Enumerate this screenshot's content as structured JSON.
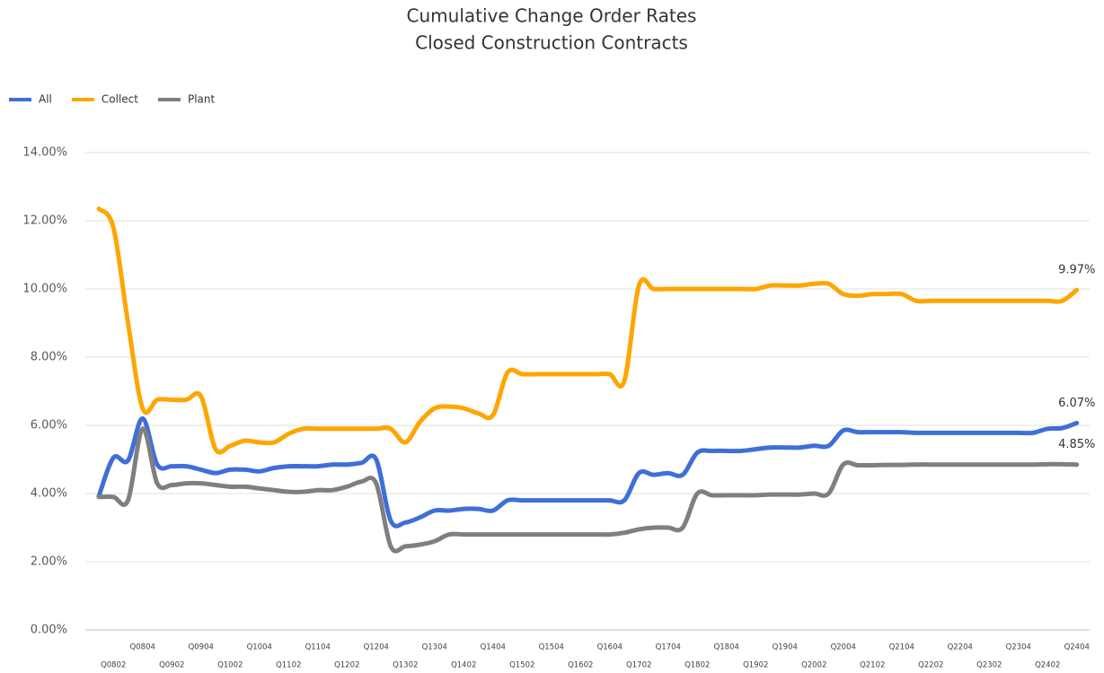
{
  "chart_data": {
    "type": "line",
    "title": "Cumulative Change Order Rates",
    "subtitle": "Closed Construction Contracts",
    "categories": [
      null,
      "Q0802",
      null,
      "Q0804",
      null,
      "Q0902",
      null,
      "Q0904",
      null,
      "Q1002",
      null,
      "Q1004",
      null,
      "Q1102",
      null,
      "Q1104",
      null,
      "Q1202",
      null,
      "Q1204",
      null,
      "Q1302",
      null,
      "Q1304",
      null,
      "Q1402",
      null,
      "Q1404",
      null,
      "Q1502",
      null,
      "Q1504",
      null,
      "Q1602",
      null,
      "Q1604",
      null,
      "Q1702",
      null,
      "Q1704",
      null,
      "Q1802",
      null,
      "Q1804",
      null,
      "Q1902",
      null,
      "Q1904",
      null,
      "Q2002",
      null,
      "Q2004",
      null,
      "Q2102",
      null,
      "Q2104",
      null,
      "Q2202",
      null,
      "Q2204",
      null,
      "Q2302",
      null,
      "Q2304",
      null,
      "Q2402",
      null,
      "Q2404"
    ],
    "series": [
      {
        "name": "All",
        "color": "#3e6fd8",
        "values": [
          3.92,
          5.05,
          4.97,
          6.2,
          4.85,
          4.8,
          4.8,
          4.7,
          4.6,
          4.7,
          4.7,
          4.65,
          4.75,
          4.8,
          4.8,
          4.8,
          4.85,
          4.85,
          4.9,
          5.0,
          3.2,
          3.15,
          3.3,
          3.5,
          3.5,
          3.55,
          3.55,
          3.5,
          3.8,
          3.8,
          3.8,
          3.8,
          3.8,
          3.8,
          3.8,
          3.8,
          3.8,
          4.6,
          4.55,
          4.6,
          4.55,
          5.2,
          5.25,
          5.25,
          5.25,
          5.3,
          5.35,
          5.35,
          5.35,
          5.4,
          5.4,
          5.85,
          5.8,
          5.8,
          5.8,
          5.8,
          5.78,
          5.78,
          5.78,
          5.78,
          5.78,
          5.78,
          5.78,
          5.78,
          5.78,
          5.9,
          5.92,
          6.07
        ],
        "value_labels": [
          null,
          null,
          null,
          null,
          null,
          null,
          null,
          null,
          null,
          null,
          null,
          null,
          null,
          null,
          null,
          null,
          null,
          null,
          null,
          null,
          null,
          null,
          null,
          null,
          null,
          null,
          null,
          null,
          null,
          null,
          null,
          null,
          null,
          null,
          null,
          null,
          null,
          null,
          null,
          null,
          null,
          null,
          null,
          null,
          null,
          null,
          null,
          null,
          null,
          null,
          null,
          null,
          null,
          null,
          null,
          null,
          null,
          null,
          null,
          null,
          null,
          null,
          null,
          null,
          null,
          null,
          null,
          "6.07%"
        ]
      },
      {
        "name": "Collect",
        "color": "#ffa500",
        "values": [
          12.35,
          11.8,
          9.0,
          6.5,
          6.75,
          6.75,
          6.75,
          6.85,
          5.3,
          5.4,
          5.55,
          5.5,
          5.5,
          5.75,
          5.9,
          5.9,
          5.9,
          5.9,
          5.9,
          5.9,
          5.9,
          5.5,
          6.1,
          6.5,
          6.55,
          6.5,
          6.35,
          6.3,
          7.55,
          7.5,
          7.5,
          7.5,
          7.5,
          7.5,
          7.5,
          7.5,
          7.3,
          10.1,
          10.0,
          10.0,
          10.0,
          10.0,
          10.0,
          10.0,
          10.0,
          10.0,
          10.1,
          10.1,
          10.1,
          10.15,
          10.15,
          9.85,
          9.8,
          9.85,
          9.85,
          9.85,
          9.65,
          9.65,
          9.65,
          9.65,
          9.65,
          9.65,
          9.65,
          9.65,
          9.65,
          9.65,
          9.65,
          9.97
        ],
        "value_labels": [
          null,
          null,
          null,
          null,
          null,
          null,
          null,
          null,
          null,
          null,
          null,
          null,
          null,
          null,
          null,
          null,
          null,
          null,
          null,
          null,
          null,
          null,
          null,
          null,
          null,
          null,
          null,
          null,
          null,
          null,
          null,
          null,
          null,
          null,
          null,
          null,
          null,
          null,
          null,
          null,
          null,
          null,
          null,
          null,
          null,
          null,
          null,
          null,
          null,
          null,
          null,
          null,
          null,
          null,
          null,
          null,
          null,
          null,
          null,
          null,
          null,
          null,
          null,
          null,
          null,
          null,
          null,
          "9.97%"
        ]
      },
      {
        "name": "Plant",
        "color": "#7f7f7f",
        "values": [
          3.9,
          3.9,
          3.8,
          5.9,
          4.3,
          4.25,
          4.3,
          4.3,
          4.25,
          4.2,
          4.2,
          4.15,
          4.1,
          4.05,
          4.05,
          4.1,
          4.1,
          4.2,
          4.35,
          4.3,
          2.45,
          2.45,
          2.5,
          2.6,
          2.8,
          2.8,
          2.8,
          2.8,
          2.8,
          2.8,
          2.8,
          2.8,
          2.8,
          2.8,
          2.8,
          2.8,
          2.85,
          2.95,
          3.0,
          3.0,
          3.0,
          4.0,
          3.95,
          3.95,
          3.95,
          3.95,
          3.97,
          3.97,
          3.97,
          4.0,
          4.0,
          4.85,
          4.83,
          4.83,
          4.84,
          4.84,
          4.85,
          4.85,
          4.85,
          4.85,
          4.85,
          4.85,
          4.85,
          4.85,
          4.85,
          4.86,
          4.86,
          4.85
        ],
        "value_labels": [
          null,
          null,
          null,
          null,
          null,
          null,
          null,
          null,
          null,
          null,
          null,
          null,
          null,
          null,
          null,
          null,
          null,
          null,
          null,
          null,
          null,
          null,
          null,
          null,
          null,
          null,
          null,
          null,
          null,
          null,
          null,
          null,
          null,
          null,
          null,
          null,
          null,
          null,
          null,
          null,
          null,
          null,
          null,
          null,
          null,
          null,
          null,
          null,
          null,
          null,
          null,
          null,
          null,
          null,
          null,
          null,
          null,
          null,
          null,
          null,
          null,
          null,
          null,
          null,
          null,
          null,
          null,
          "4.85%"
        ]
      }
    ],
    "ylim": [
      0,
      14
    ],
    "yticks": [
      {
        "value": 0,
        "label": "0.00%"
      },
      {
        "value": 2,
        "label": "2.00%"
      },
      {
        "value": 4,
        "label": "4.00%"
      },
      {
        "value": 6,
        "label": "6.00%"
      },
      {
        "value": 8,
        "label": "8.00%"
      },
      {
        "value": 10,
        "label": "10.00%"
      },
      {
        "value": 12,
        "label": "12.00%"
      },
      {
        "value": 14,
        "label": "14.00%"
      }
    ],
    "grid": true,
    "legend": "top-left"
  }
}
